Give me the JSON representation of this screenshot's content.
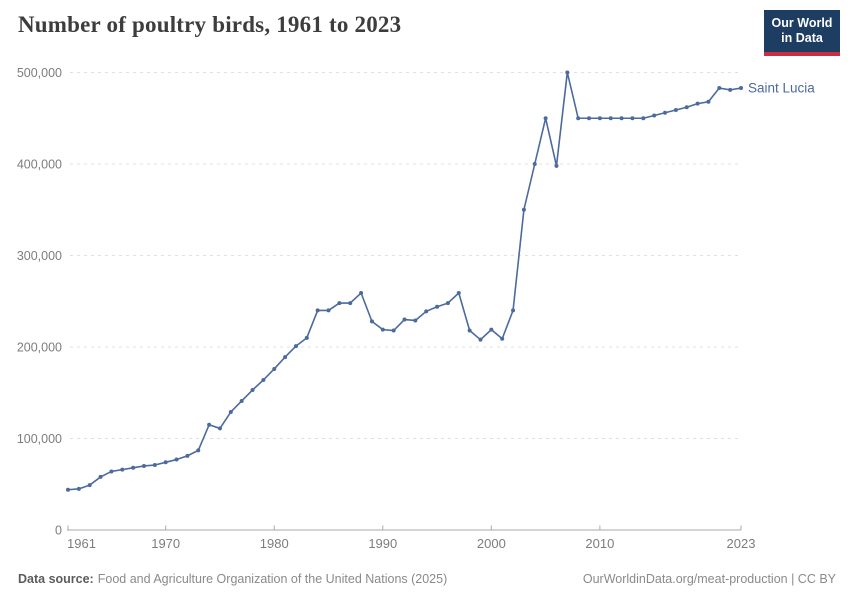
{
  "header": {
    "title": "Number of poultry birds, 1961 to 2023",
    "logo_line1": "Our World",
    "logo_line2": "in Data"
  },
  "chart_data": {
    "type": "line",
    "title": "Number of poultry birds, 1961 to 2023",
    "entity_label": "Saint Lucia",
    "grid": "horizontal dashed",
    "legend_position": "right-of-line",
    "marker": "circle",
    "xlabel": "",
    "ylabel": "",
    "ylim": [
      0,
      500000
    ],
    "yticks": [
      0,
      100000,
      200000,
      300000,
      400000,
      500000
    ],
    "ytick_labels": [
      "0",
      "100,000",
      "200,000",
      "300,000",
      "400,000",
      "500,000"
    ],
    "xticks": [
      1961,
      1970,
      1980,
      1990,
      2000,
      2010,
      2023
    ],
    "x": [
      1961,
      1962,
      1963,
      1964,
      1965,
      1966,
      1967,
      1968,
      1969,
      1970,
      1971,
      1972,
      1973,
      1974,
      1975,
      1976,
      1977,
      1978,
      1979,
      1980,
      1981,
      1982,
      1983,
      1984,
      1985,
      1986,
      1987,
      1988,
      1989,
      1990,
      1991,
      1992,
      1993,
      1994,
      1995,
      1996,
      1997,
      1998,
      1999,
      2000,
      2001,
      2002,
      2003,
      2004,
      2005,
      2006,
      2007,
      2008,
      2009,
      2010,
      2011,
      2012,
      2013,
      2014,
      2015,
      2016,
      2017,
      2018,
      2019,
      2020,
      2021,
      2022,
      2023
    ],
    "series": [
      {
        "name": "Saint Lucia",
        "color": "#4c6a9c",
        "values": [
          44000,
          45000,
          49000,
          58000,
          64000,
          66000,
          68000,
          70000,
          71000,
          74000,
          77000,
          81000,
          87000,
          115000,
          111000,
          129000,
          141000,
          153000,
          164000,
          176000,
          189000,
          201000,
          210000,
          240000,
          240000,
          248000,
          248000,
          259000,
          228000,
          219000,
          218000,
          230000,
          229000,
          239000,
          244000,
          248000,
          259000,
          218000,
          208000,
          219000,
          209000,
          240000,
          350000,
          400000,
          450000,
          398000,
          500000,
          450000,
          450000,
          450000,
          450000,
          450000,
          450000,
          450000,
          453000,
          456000,
          459000,
          462000,
          466000,
          468000,
          483000,
          481000,
          483000
        ]
      }
    ]
  },
  "footer": {
    "datasource_label": "Data source:",
    "datasource_text": "Food and Agriculture Organization of the United Nations (2025)",
    "credit": "OurWorldinData.org/meat-production | CC BY"
  },
  "colors": {
    "line": "#4c6a9c",
    "gridline": "#e0e0e0",
    "axis": "#a9a9a9",
    "tick_label": "#7d7d7d",
    "title": "#3d3d3d",
    "logo_bg": "#1d3d63",
    "logo_accent": "#cc2e41"
  }
}
